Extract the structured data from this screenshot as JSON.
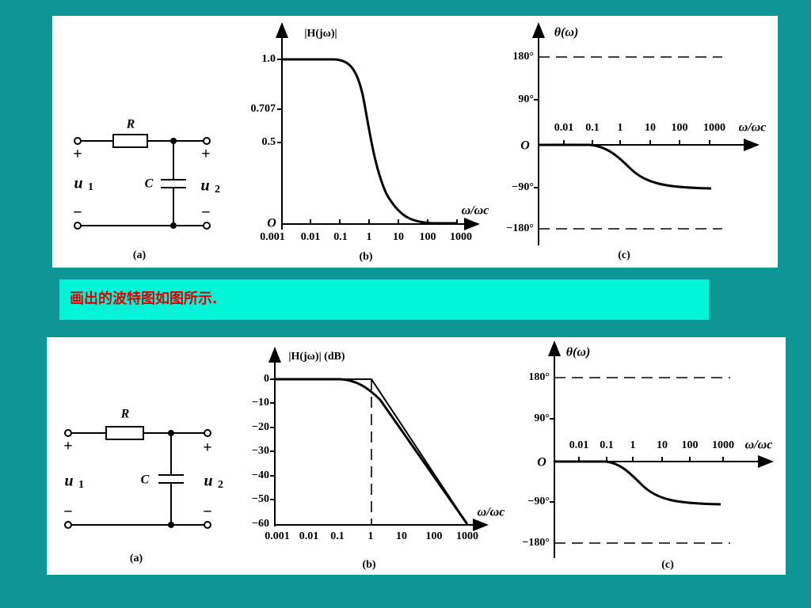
{
  "top": {
    "circuit": {
      "r": "R",
      "c": "C",
      "u1": "u",
      "u1_sub": "1",
      "u2": "u",
      "u2_sub": "2",
      "plus": "+",
      "minus": "−",
      "caption": "(a)"
    },
    "magnitude": {
      "ylabel": "|H(jω)|",
      "yticks": [
        "1.0",
        "0.707",
        "0.5"
      ],
      "origin": "O",
      "xticks": [
        "0.001",
        "0.01",
        "0.1",
        "1",
        "10",
        "100",
        "1000"
      ],
      "xlabel": "ω/ωc",
      "caption": "(b)"
    },
    "phase": {
      "ylabel": "θ(ω)",
      "yticks": [
        "180°",
        "90°",
        "−90°",
        "−180°"
      ],
      "origin": "O",
      "xticks": [
        "0.01",
        "0.1",
        "1",
        "10",
        "100",
        "1000"
      ],
      "xlabel": "ω/ωc",
      "caption": "(c)"
    }
  },
  "text": "画出的波特图如图所示.",
  "bottom": {
    "circuit": {
      "r": "R",
      "c": "C",
      "u1": "u",
      "u1_sub": "1",
      "u2": "u",
      "u2_sub": "2",
      "plus": "+",
      "minus": "−",
      "caption": "(a)"
    },
    "magnitude": {
      "ylabel": "|H(jω)| (dB)",
      "yticks": [
        "0",
        "−10",
        "−20",
        "−30",
        "−40",
        "−50",
        "−60"
      ],
      "xticks": [
        "0.001",
        "0.01",
        "0.1",
        "1",
        "10",
        "100",
        "1000"
      ],
      "xlabel": "ω/ωc",
      "caption": "(b)"
    },
    "phase": {
      "ylabel": "θ(ω)",
      "yticks": [
        "180°",
        "90°",
        "−90°",
        "−180°"
      ],
      "origin": "O",
      "xticks": [
        "0.01",
        "0.1",
        "1",
        "10",
        "100",
        "1000"
      ],
      "xlabel": "ω/ωc",
      "caption": "(c)"
    }
  }
}
